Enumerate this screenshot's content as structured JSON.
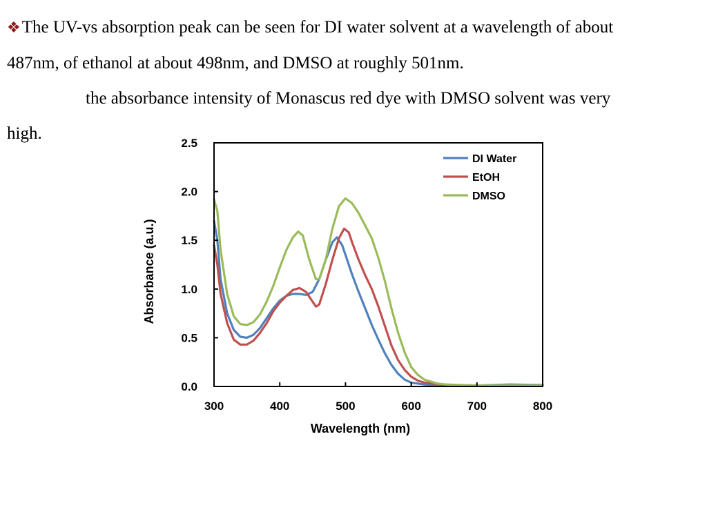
{
  "bullet_symbol": "❖",
  "paragraph": {
    "line1": "The UV-vs absorption peak can be seen for DI water solvent at a wavelength of about",
    "line2": "487nm, of ethanol at about 498nm, and DMSO at roughly 501nm.",
    "line3": "the absorbance intensity of Monascus red dye with DMSO solvent was very",
    "line4": "high."
  },
  "chart_data": {
    "type": "line",
    "xlabel": "Wavelength (nm)",
    "ylabel": "Absorbance (a.u.)",
    "xlim": [
      300,
      800
    ],
    "ylim": [
      0,
      2.5
    ],
    "xticks": [
      300,
      400,
      500,
      600,
      700,
      800
    ],
    "yticks": [
      0.0,
      0.5,
      1.0,
      1.5,
      2.0,
      2.5
    ],
    "ytick_labels": [
      "0.0",
      "0.5",
      "1.0",
      "1.5",
      "2.0",
      "2.5"
    ],
    "legend_position": "top-right",
    "grid": false,
    "series": [
      {
        "name": "DI Water",
        "color": "#4f81bd",
        "points": [
          [
            300,
            1.7
          ],
          [
            305,
            1.5
          ],
          [
            310,
            1.1
          ],
          [
            320,
            0.75
          ],
          [
            330,
            0.58
          ],
          [
            340,
            0.51
          ],
          [
            350,
            0.5
          ],
          [
            360,
            0.53
          ],
          [
            370,
            0.6
          ],
          [
            380,
            0.7
          ],
          [
            390,
            0.8
          ],
          [
            400,
            0.88
          ],
          [
            410,
            0.93
          ],
          [
            420,
            0.95
          ],
          [
            430,
            0.95
          ],
          [
            440,
            0.94
          ],
          [
            450,
            0.97
          ],
          [
            460,
            1.1
          ],
          [
            470,
            1.3
          ],
          [
            480,
            1.48
          ],
          [
            487,
            1.53
          ],
          [
            495,
            1.45
          ],
          [
            500,
            1.35
          ],
          [
            510,
            1.15
          ],
          [
            520,
            0.97
          ],
          [
            530,
            0.8
          ],
          [
            540,
            0.63
          ],
          [
            550,
            0.48
          ],
          [
            560,
            0.34
          ],
          [
            570,
            0.22
          ],
          [
            580,
            0.13
          ],
          [
            590,
            0.07
          ],
          [
            600,
            0.04
          ],
          [
            620,
            0.02
          ],
          [
            650,
            0.01
          ],
          [
            700,
            0.01
          ],
          [
            750,
            0.02
          ],
          [
            800,
            0.015
          ]
        ]
      },
      {
        "name": "EtOH",
        "color": "#c0504d",
        "points": [
          [
            300,
            1.45
          ],
          [
            305,
            1.25
          ],
          [
            310,
            0.95
          ],
          [
            320,
            0.65
          ],
          [
            330,
            0.48
          ],
          [
            340,
            0.43
          ],
          [
            350,
            0.43
          ],
          [
            360,
            0.47
          ],
          [
            370,
            0.55
          ],
          [
            380,
            0.65
          ],
          [
            390,
            0.77
          ],
          [
            400,
            0.86
          ],
          [
            410,
            0.93
          ],
          [
            420,
            0.99
          ],
          [
            430,
            1.01
          ],
          [
            440,
            0.97
          ],
          [
            450,
            0.87
          ],
          [
            455,
            0.82
          ],
          [
            460,
            0.84
          ],
          [
            470,
            1.05
          ],
          [
            480,
            1.3
          ],
          [
            490,
            1.52
          ],
          [
            498,
            1.62
          ],
          [
            505,
            1.58
          ],
          [
            510,
            1.48
          ],
          [
            520,
            1.3
          ],
          [
            530,
            1.14
          ],
          [
            540,
            1.0
          ],
          [
            550,
            0.82
          ],
          [
            560,
            0.62
          ],
          [
            570,
            0.42
          ],
          [
            580,
            0.27
          ],
          [
            590,
            0.17
          ],
          [
            600,
            0.1
          ],
          [
            610,
            0.06
          ],
          [
            620,
            0.04
          ],
          [
            650,
            0.02
          ],
          [
            700,
            0.01
          ],
          [
            750,
            0.01
          ],
          [
            800,
            0.01
          ]
        ]
      },
      {
        "name": "DMSO",
        "color": "#9bbb59",
        "points": [
          [
            300,
            1.92
          ],
          [
            305,
            1.8
          ],
          [
            310,
            1.4
          ],
          [
            320,
            0.95
          ],
          [
            330,
            0.72
          ],
          [
            340,
            0.64
          ],
          [
            350,
            0.63
          ],
          [
            360,
            0.66
          ],
          [
            370,
            0.74
          ],
          [
            380,
            0.87
          ],
          [
            390,
            1.03
          ],
          [
            400,
            1.22
          ],
          [
            410,
            1.4
          ],
          [
            420,
            1.53
          ],
          [
            428,
            1.59
          ],
          [
            435,
            1.55
          ],
          [
            445,
            1.3
          ],
          [
            455,
            1.1
          ],
          [
            460,
            1.1
          ],
          [
            470,
            1.3
          ],
          [
            480,
            1.62
          ],
          [
            490,
            1.85
          ],
          [
            500,
            1.93
          ],
          [
            510,
            1.88
          ],
          [
            520,
            1.78
          ],
          [
            530,
            1.65
          ],
          [
            540,
            1.52
          ],
          [
            550,
            1.32
          ],
          [
            560,
            1.08
          ],
          [
            570,
            0.8
          ],
          [
            580,
            0.55
          ],
          [
            590,
            0.35
          ],
          [
            600,
            0.2
          ],
          [
            610,
            0.12
          ],
          [
            620,
            0.07
          ],
          [
            640,
            0.03
          ],
          [
            660,
            0.015
          ],
          [
            700,
            0.01
          ],
          [
            750,
            0.01
          ],
          [
            800,
            0.01
          ]
        ]
      }
    ]
  }
}
